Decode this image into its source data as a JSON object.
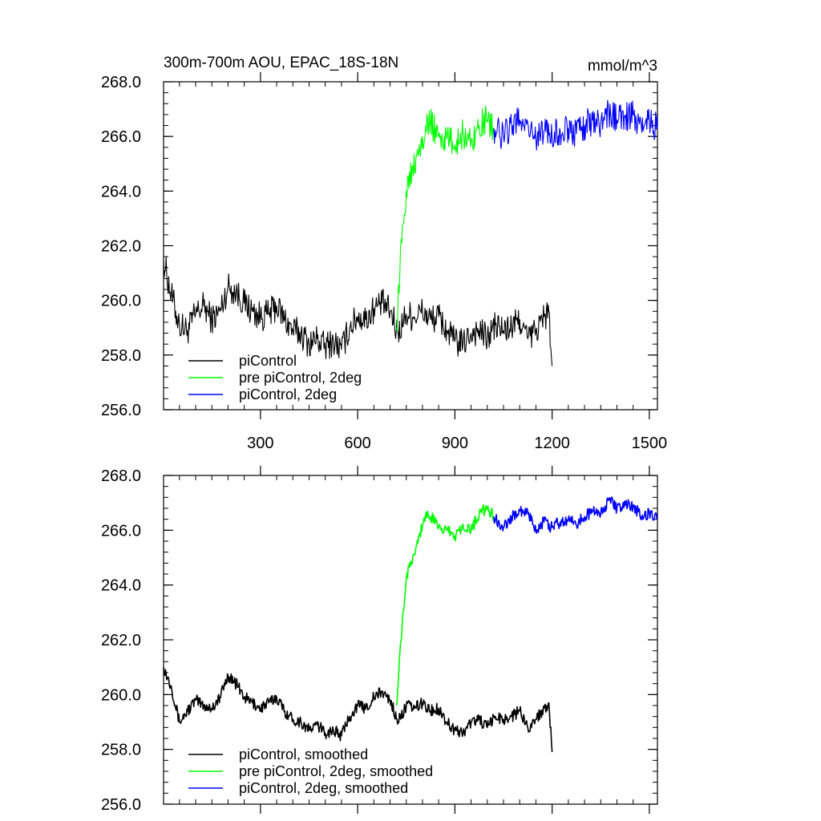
{
  "figure": {
    "title_left": "300m-700m AOU, EPAC_18S-18N",
    "title_right": "mmol/m^3"
  },
  "chart_data": [
    {
      "type": "line",
      "title": "300m-700m AOU, EPAC_18S-18N",
      "units": "mmol/m^3",
      "xlim": [
        1,
        1525
      ],
      "ylim": [
        256.0,
        268.0
      ],
      "x_ticks": [
        300,
        600,
        900,
        1200,
        1500
      ],
      "x_tick_labels": [
        "300",
        "600",
        "900",
        "1200",
        "1500"
      ],
      "y_ticks": [
        256.0,
        258.0,
        260.0,
        262.0,
        264.0,
        266.0,
        268.0
      ],
      "y_tick_labels": [
        "256.0",
        "258.0",
        "260.0",
        "262.0",
        "264.0",
        "266.0",
        "268.0"
      ],
      "grid": false,
      "legend_position": "bottom-left",
      "series": [
        {
          "name": "piControl",
          "color": "#000000",
          "x": [
            1,
            25,
            50,
            75,
            100,
            125,
            150,
            175,
            200,
            225,
            250,
            275,
            300,
            325,
            350,
            375,
            400,
            425,
            450,
            475,
            500,
            525,
            550,
            575,
            600,
            625,
            650,
            675,
            700,
            725,
            750,
            775,
            800,
            825,
            850,
            875,
            900,
            925,
            950,
            975,
            1000,
            1025,
            1050,
            1075,
            1100,
            1125,
            1150,
            1175,
            1190,
            1200
          ],
          "y": [
            261.5,
            260.2,
            259.1,
            258.9,
            259.5,
            259.8,
            259.3,
            259.6,
            260.5,
            260.3,
            259.9,
            259.6,
            259.4,
            259.5,
            259.8,
            259.3,
            258.9,
            258.8,
            258.4,
            258.6,
            258.3,
            258.5,
            258.2,
            259.0,
            259.4,
            259.3,
            259.7,
            259.9,
            259.6,
            258.8,
            259.5,
            259.4,
            259.6,
            259.3,
            259.4,
            258.9,
            258.5,
            258.4,
            258.8,
            258.9,
            258.6,
            259.1,
            258.9,
            259.0,
            259.3,
            258.6,
            258.9,
            259.4,
            259.6,
            257.6
          ]
        },
        {
          "name": "pre piControl, 2deg",
          "color": "#00ff00",
          "x": [
            720,
            730,
            740,
            750,
            760,
            770,
            780,
            790,
            800,
            810,
            825,
            850,
            875,
            900,
            925,
            950,
            975,
            1000,
            1020
          ],
          "y": [
            259.0,
            261.0,
            262.8,
            264.0,
            264.7,
            264.9,
            265.3,
            265.7,
            266.0,
            266.4,
            266.5,
            266.0,
            265.9,
            265.7,
            266.1,
            265.8,
            266.4,
            266.6,
            266.3
          ]
        },
        {
          "name": "piControl, 2deg",
          "color": "#0000ff",
          "x": [
            1020,
            1050,
            1075,
            1100,
            1125,
            1150,
            1175,
            1200,
            1225,
            1250,
            1275,
            1300,
            1325,
            1350,
            1375,
            1400,
            1425,
            1450,
            1475,
            1500,
            1525
          ],
          "y": [
            266.3,
            266.0,
            266.4,
            266.6,
            266.5,
            265.9,
            266.2,
            266.0,
            266.2,
            266.3,
            266.1,
            266.4,
            266.6,
            266.5,
            266.9,
            266.6,
            266.7,
            266.8,
            266.4,
            266.5,
            266.3
          ]
        }
      ]
    },
    {
      "type": "line",
      "xlim": [
        1,
        1525
      ],
      "ylim": [
        256.0,
        268.0
      ],
      "x_ticks": [
        300,
        600,
        900,
        1200,
        1500
      ],
      "y_ticks": [
        256.0,
        258.0,
        260.0,
        262.0,
        264.0,
        266.0,
        268.0
      ],
      "y_tick_labels": [
        "256.0",
        "258.0",
        "260.0",
        "262.0",
        "264.0",
        "266.0",
        "268.0"
      ],
      "grid": false,
      "legend_position": "bottom-left",
      "series": [
        {
          "name": "piControl, smoothed",
          "color": "#000000",
          "x": [
            1,
            25,
            50,
            75,
            100,
            125,
            150,
            175,
            200,
            225,
            250,
            275,
            300,
            325,
            350,
            375,
            400,
            425,
            450,
            475,
            500,
            525,
            550,
            575,
            600,
            625,
            650,
            675,
            700,
            725,
            750,
            775,
            800,
            825,
            850,
            875,
            900,
            925,
            950,
            975,
            1000,
            1025,
            1050,
            1075,
            1100,
            1125,
            1150,
            1175,
            1190,
            1200
          ],
          "y": [
            261.0,
            260.3,
            259.0,
            259.4,
            259.8,
            259.6,
            259.5,
            259.9,
            260.7,
            260.4,
            259.9,
            259.7,
            259.5,
            259.7,
            259.9,
            259.4,
            259.1,
            259.0,
            258.7,
            258.9,
            258.6,
            258.7,
            258.5,
            259.2,
            259.6,
            259.5,
            259.9,
            260.1,
            259.8,
            259.0,
            259.6,
            259.5,
            259.7,
            259.4,
            259.5,
            259.0,
            258.7,
            258.6,
            259.0,
            259.1,
            258.8,
            259.2,
            259.1,
            259.2,
            259.4,
            258.8,
            259.1,
            259.5,
            259.7,
            257.9
          ]
        },
        {
          "name": "pre piControl, 2deg, smoothed",
          "color": "#00ff00",
          "x": [
            720,
            730,
            740,
            750,
            760,
            770,
            780,
            790,
            800,
            810,
            825,
            850,
            875,
            900,
            925,
            950,
            975,
            1000,
            1020
          ],
          "y": [
            259.6,
            261.5,
            263.0,
            264.2,
            264.8,
            265.0,
            265.4,
            265.8,
            266.2,
            266.6,
            266.5,
            266.1,
            266.0,
            265.8,
            266.2,
            266.0,
            266.6,
            266.8,
            266.5
          ]
        },
        {
          "name": "piControl, 2deg, smoothed",
          "color": "#0000ff",
          "x": [
            1020,
            1050,
            1075,
            1100,
            1125,
            1150,
            1175,
            1200,
            1225,
            1250,
            1275,
            1300,
            1325,
            1350,
            1375,
            1400,
            1425,
            1450,
            1475,
            1500,
            1525
          ],
          "y": [
            266.5,
            266.1,
            266.5,
            266.7,
            266.6,
            266.0,
            266.3,
            266.1,
            266.3,
            266.4,
            266.2,
            266.5,
            266.7,
            266.6,
            267.1,
            266.8,
            266.9,
            266.9,
            266.5,
            266.6,
            266.4
          ]
        }
      ]
    }
  ]
}
